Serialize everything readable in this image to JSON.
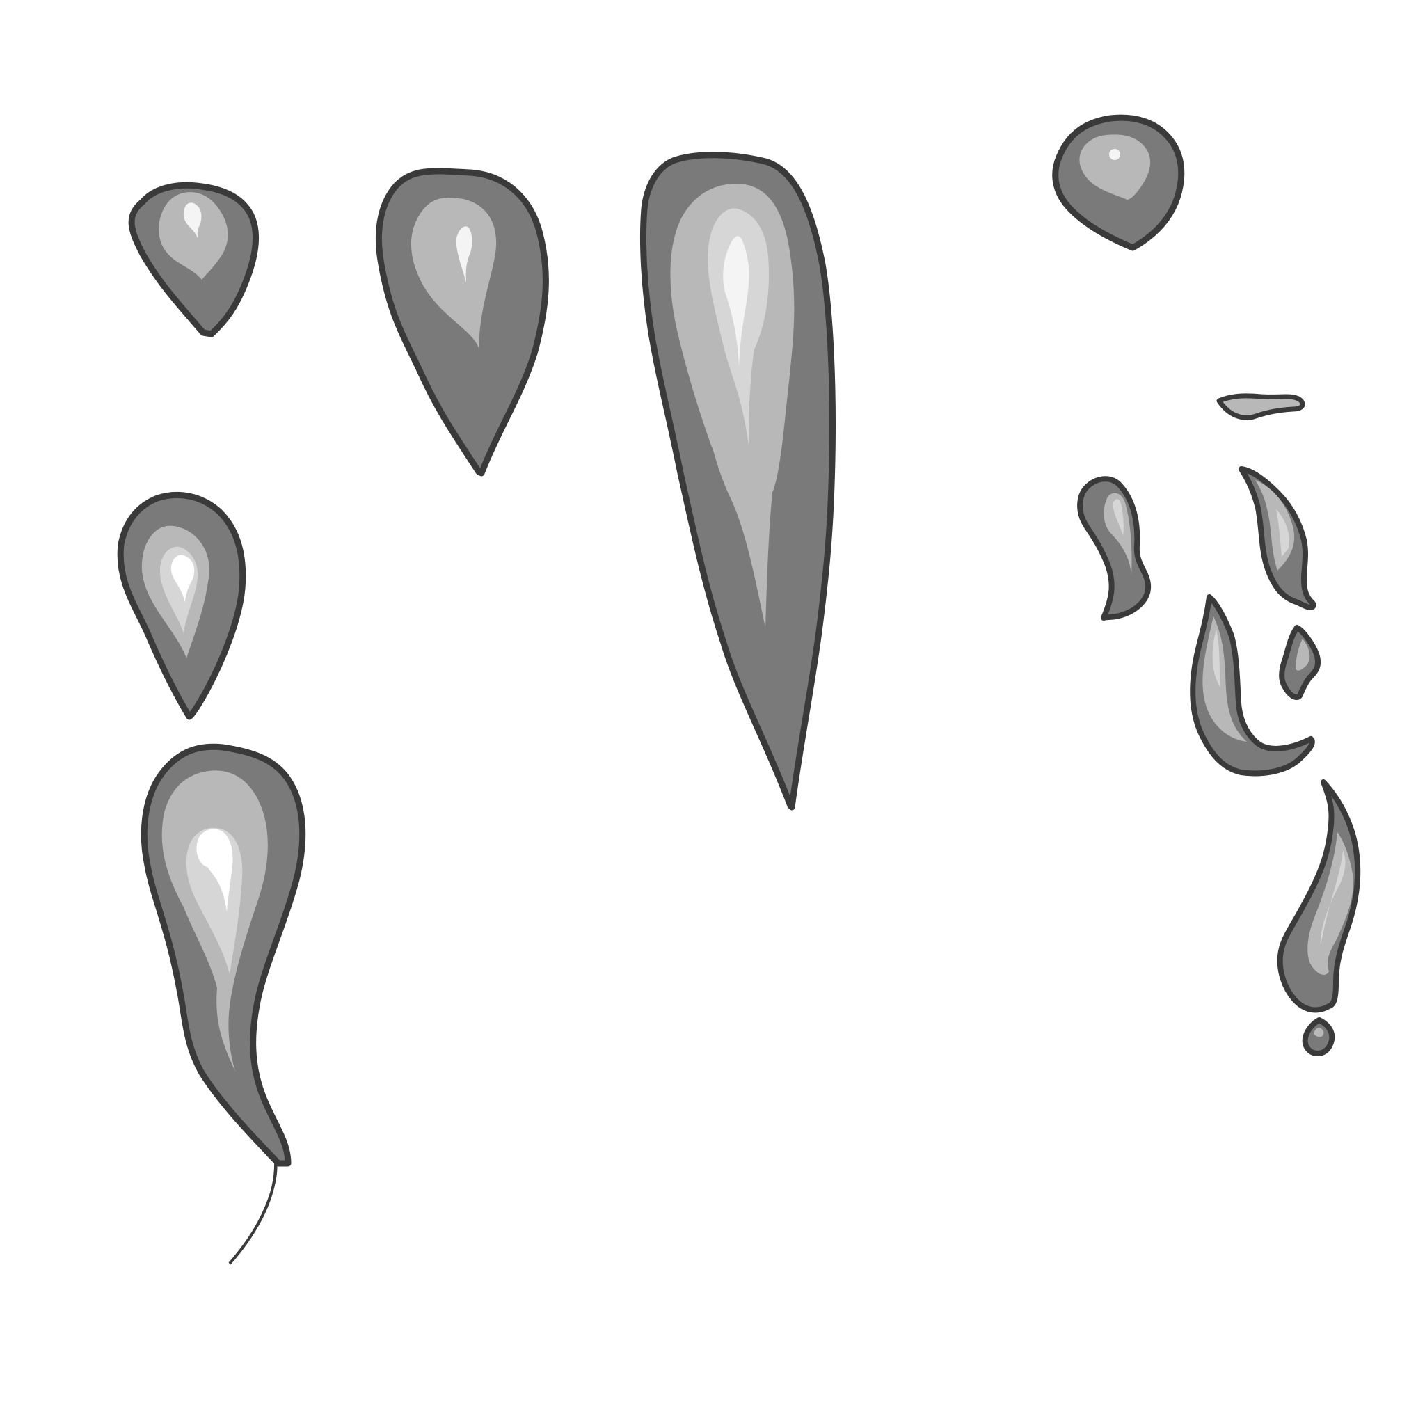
{
  "background": "#ffffff",
  "palette": {
    "outline": "#3a3a3a",
    "base": "#7a7a7a",
    "mid": "#b8b8b8",
    "light": "#d6d6d6",
    "highlight": "#f4f4f4"
  },
  "sprites": [
    {
      "name": "small-droplet-sprite",
      "icon": "droplet-icon"
    },
    {
      "name": "medium-droplet-sprite",
      "icon": "droplet-icon"
    },
    {
      "name": "long-droplet-sprite",
      "icon": "droplet-icon"
    },
    {
      "name": "round-droplet-sprite",
      "icon": "droplet-icon"
    },
    {
      "name": "wide-droplet-sprite",
      "icon": "droplet-icon"
    },
    {
      "name": "wavy-droplet-sprite",
      "icon": "droplet-icon"
    },
    {
      "name": "tiny-splash-bar-sprite",
      "icon": "splash-fragment-icon"
    },
    {
      "name": "curl-left-splash-sprite",
      "icon": "splash-fragment-icon"
    },
    {
      "name": "curl-right-splash-sprite",
      "icon": "splash-fragment-icon"
    },
    {
      "name": "hook-splash-sprite",
      "icon": "splash-fragment-icon"
    },
    {
      "name": "small-bead-splash-sprite",
      "icon": "splash-fragment-icon"
    },
    {
      "name": "exclamation-splash-sprite",
      "icon": "splash-fragment-icon"
    },
    {
      "name": "exclamation-dot-sprite",
      "icon": "splash-fragment-icon"
    }
  ]
}
